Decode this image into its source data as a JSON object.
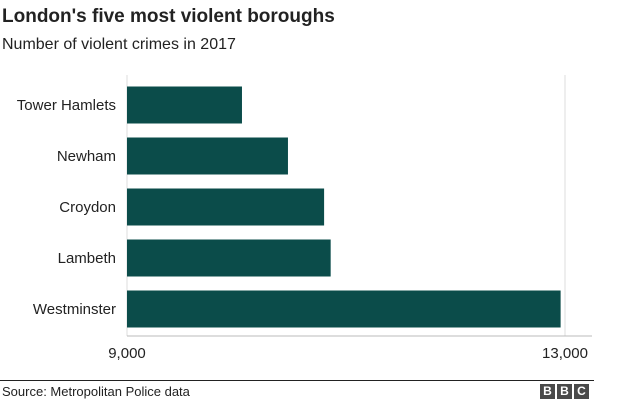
{
  "header": {
    "title": "London's five most violent boroughs",
    "subtitle": "Number of violent crimes in 2017"
  },
  "chart_data": {
    "type": "bar",
    "orientation": "horizontal",
    "title": "London's five most violent boroughs",
    "subtitle": "Number of violent crimes in 2017",
    "xlabel": "",
    "ylabel": "",
    "categories": [
      "Tower Hamlets",
      "Newham",
      "Croydon",
      "Lambeth",
      "Westminster"
    ],
    "values": [
      10050,
      10470,
      10800,
      10860,
      12960
    ],
    "xlim": [
      9000,
      13000
    ],
    "ticks": [
      9000,
      13000
    ],
    "tick_labels": [
      "9,000",
      "13,000"
    ],
    "bar_color": "#0b4c4a",
    "grid": true
  },
  "footer": {
    "source": "Source: Metropolitan Police data",
    "logo_letters": [
      "B",
      "B",
      "C"
    ]
  }
}
